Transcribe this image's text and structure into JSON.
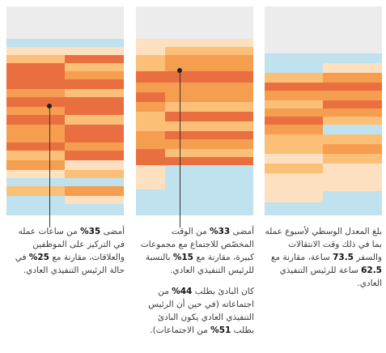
{
  "colors": {
    "panel_bg": "#ececec",
    "light_blue": "#bfe2ee",
    "pale_peach": "#fde0c0",
    "light_orange": "#fbbf77",
    "orange": "#f59e4f",
    "dark_orange": "#ea6f40"
  },
  "captions": {
    "left": [
      {
        "seg": [
          "أمضى ",
          "35%",
          " من ساعات عمله في التركيز على الموظفين والعلاقات، مقارنة مع ",
          "25%",
          " في حالة الرئيس التنفيذي العادي."
        ]
      }
    ],
    "middle": [
      {
        "seg": [
          "أمضى ",
          "33%",
          " من الوقت المخصّص للاجتماع مع مجموعات كبيرة، مقارنة مع ",
          "15%",
          " بالنسبة للرئيس التنفيذي العادي."
        ]
      },
      {
        "seg": [
          "كان البادئ بطلب ",
          "44%",
          " من اجتماعاته (في حين أن الرئيس التنفيذي العادي يكون البادئ بطلب ",
          "51%",
          " من الاجتماعات)."
        ]
      }
    ],
    "right": [
      {
        "seg": [
          "بلغ المعدل الوسطي لأسبوع عمله بما في ذلك وقت الانتقالات والسفر ",
          "73.5",
          " ساعة، مقارنة مع ",
          "62.5",
          " ساعة للرئيس التنفيذي العادي."
        ]
      }
    ]
  }
}
